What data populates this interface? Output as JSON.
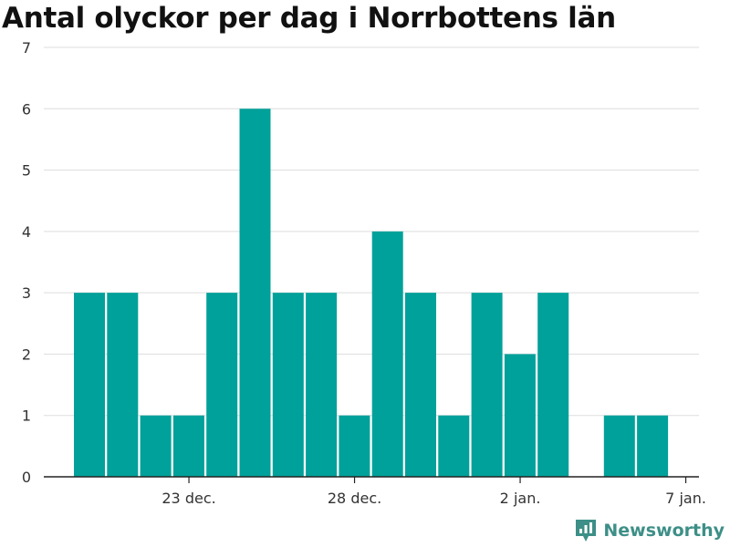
{
  "chart_data": {
    "type": "bar",
    "title": "Antal olyckor per dag i Norrbottens län",
    "xlabel": "",
    "ylabel": "",
    "x_start": "2019-12-20",
    "dates": [
      "2019-12-20",
      "2019-12-21",
      "2019-12-22",
      "2019-12-23",
      "2019-12-24",
      "2019-12-25",
      "2019-12-26",
      "2019-12-27",
      "2019-12-28",
      "2019-12-29",
      "2019-12-30",
      "2019-12-31",
      "2020-01-01",
      "2020-01-02",
      "2020-01-03",
      "2020-01-04",
      "2020-01-05",
      "2020-01-06",
      "2020-01-07"
    ],
    "values": [
      3,
      3,
      1,
      1,
      3,
      6,
      3,
      3,
      1,
      4,
      3,
      1,
      3,
      2,
      3,
      0,
      1,
      1,
      0
    ],
    "ylim": [
      0,
      7
    ],
    "yticks": [
      0,
      1,
      2,
      3,
      4,
      5,
      6,
      7
    ],
    "xticks": [
      {
        "date": "2019-12-23",
        "label": "23 dec."
      },
      {
        "date": "2019-12-28",
        "label": "28 dec."
      },
      {
        "date": "2020-01-02",
        "label": "2 jan."
      },
      {
        "date": "2020-01-07",
        "label": "7 jan."
      }
    ],
    "bar_color": "#00a19a",
    "grid": true,
    "legend": "none"
  },
  "branding": {
    "name": "Newsworthy",
    "icon": "newsworthy-logo-icon",
    "color": "#3d8f87"
  }
}
